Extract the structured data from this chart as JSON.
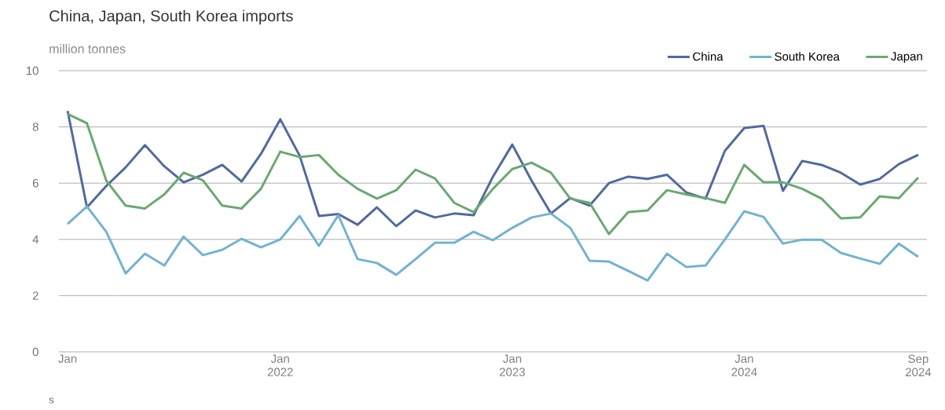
{
  "chart_data": {
    "type": "line",
    "title": "China, Japan, South Korea imports",
    "ylabel": "million tonnes",
    "categories": [
      "Jan",
      null,
      null,
      null,
      null,
      null,
      null,
      null,
      null,
      null,
      null,
      "Jan 2022",
      null,
      null,
      null,
      null,
      null,
      null,
      null,
      null,
      null,
      null,
      null,
      "Jan 2023",
      null,
      null,
      null,
      null,
      null,
      null,
      null,
      null,
      null,
      null,
      null,
      "Jan 2024",
      null,
      null,
      null,
      null,
      null,
      null,
      null,
      null,
      "Sep 2024"
    ],
    "series": [
      {
        "name": "China",
        "color": "#52699e",
        "values": [
          8.57,
          5.14,
          5.9,
          6.56,
          7.35,
          6.6,
          6.03,
          6.3,
          6.65,
          6.06,
          7.04,
          8.27,
          6.98,
          4.83,
          4.9,
          4.52,
          5.14,
          4.47,
          5.03,
          4.78,
          4.92,
          4.86,
          6.23,
          7.37,
          6.09,
          4.92,
          5.47,
          5.2,
          6.0,
          6.23,
          6.15,
          6.3,
          5.67,
          5.45,
          7.15,
          7.96,
          8.04,
          5.73,
          6.79,
          6.65,
          6.37,
          5.95,
          6.15,
          6.68,
          7.01
        ]
      },
      {
        "name": "South Korea",
        "color": "#72b3cf",
        "values": [
          4.55,
          5.17,
          4.27,
          2.79,
          3.49,
          3.07,
          4.1,
          3.44,
          3.63,
          4.02,
          3.72,
          4.0,
          4.83,
          3.77,
          4.86,
          3.3,
          3.16,
          2.74,
          3.3,
          3.88,
          3.88,
          4.27,
          3.97,
          4.41,
          4.78,
          4.92,
          4.41,
          3.24,
          3.21,
          2.88,
          2.54,
          3.49,
          3.02,
          3.07,
          4.0,
          5.0,
          4.8,
          3.85,
          3.99,
          3.99,
          3.52,
          3.32,
          3.13,
          3.85,
          3.38
        ]
      },
      {
        "name": "Japan",
        "color": "#6aa873",
        "values": [
          8.46,
          8.13,
          6.09,
          5.2,
          5.1,
          5.6,
          6.37,
          6.1,
          5.2,
          5.1,
          5.8,
          7.12,
          6.93,
          7.0,
          6.3,
          5.8,
          5.45,
          5.75,
          6.48,
          6.17,
          5.3,
          4.97,
          5.8,
          6.5,
          6.73,
          6.37,
          5.45,
          5.3,
          4.19,
          4.97,
          5.03,
          5.75,
          5.6,
          5.47,
          5.3,
          6.65,
          6.03,
          6.03,
          5.8,
          5.45,
          4.75,
          4.78,
          5.53,
          5.47,
          6.2
        ]
      }
    ],
    "ylim": [
      0,
      10
    ],
    "yticks": [
      0,
      2,
      4,
      6,
      8,
      10
    ],
    "grid": "y",
    "legend": "top right",
    "marker": "none",
    "line_style": "solid",
    "annotations": [
      "s"
    ]
  }
}
